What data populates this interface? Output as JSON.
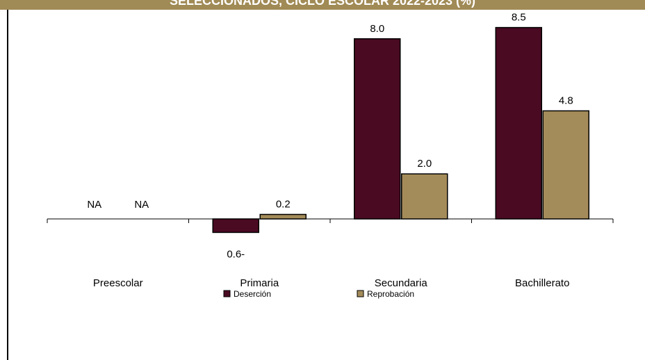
{
  "title": "SELECCIONADOS, CICLO ESCOLAR 2022-2023 (%)",
  "colors": {
    "header": "#a08a55",
    "desercion": "#4a0a22",
    "reprobacion": "#a48c5a"
  },
  "chart_data": {
    "type": "bar",
    "title": "SELECCIONADOS, CICLO ESCOLAR 2022-2023 (%)",
    "categories": [
      "Preescolar",
      "Primaria",
      "Secundaria",
      "Bachillerato"
    ],
    "series": [
      {
        "name": "Deserción",
        "values": [
          null,
          -0.6,
          8.0,
          8.5
        ],
        "labels": [
          "NA",
          "0.6-",
          "8.0",
          "8.5"
        ]
      },
      {
        "name": "Reprobación",
        "values": [
          null,
          0.2,
          2.0,
          4.8
        ],
        "labels": [
          "NA",
          "0.2",
          "2.0",
          "4.8"
        ]
      }
    ],
    "ylim": [
      -0.6,
      8.5
    ],
    "grid": false,
    "legend_position": "bottom"
  }
}
